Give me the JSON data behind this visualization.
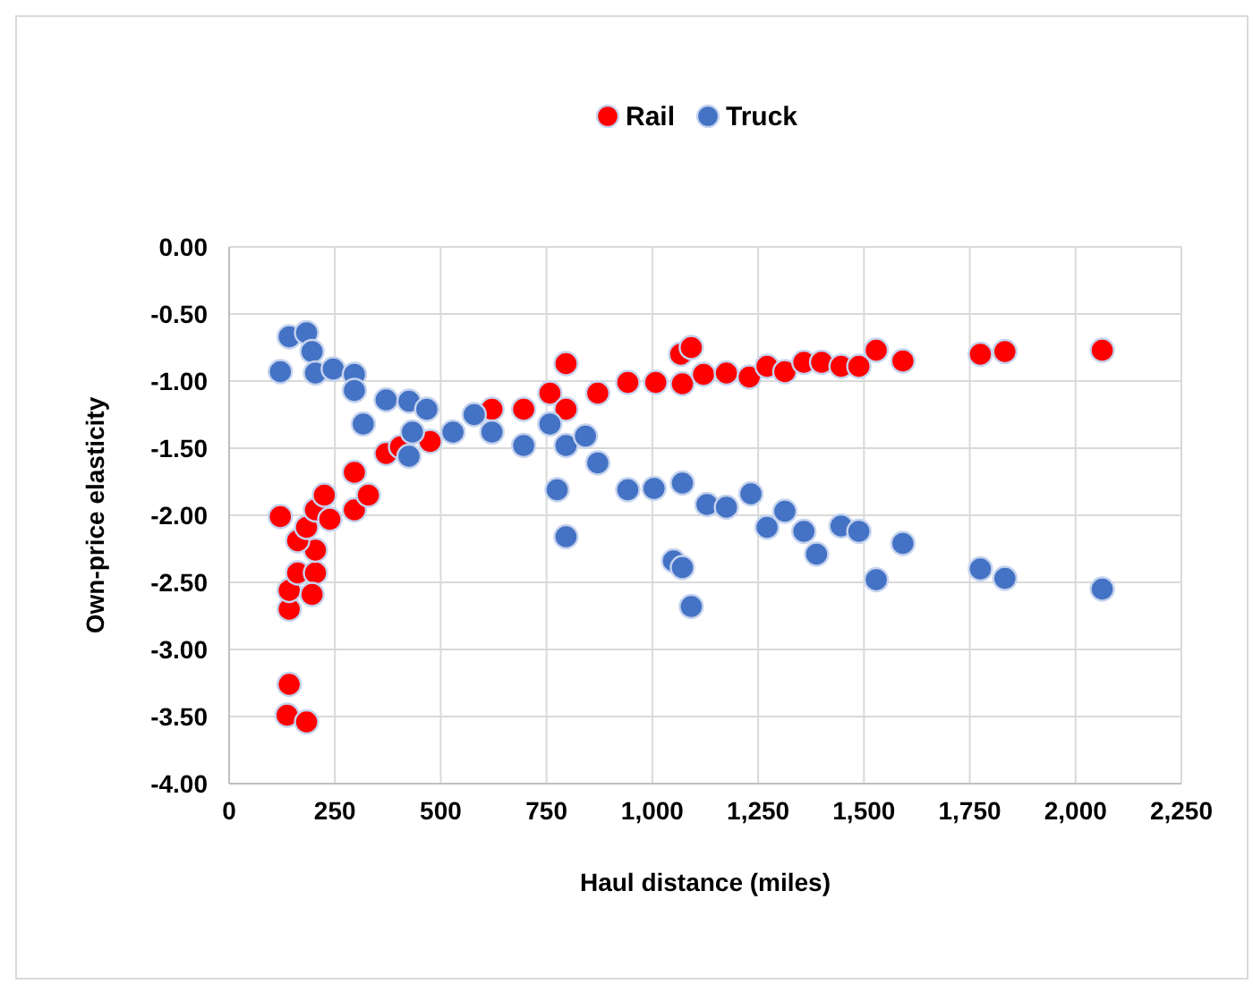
{
  "chart_data": {
    "type": "scatter",
    "xlabel": "Haul distance (miles)",
    "ylabel": "Own-price elasticity",
    "xlim": [
      0,
      2250
    ],
    "xticks": [
      0,
      250,
      500,
      750,
      {
        "value": 1000,
        "label": "1,000"
      },
      {
        "value": 1250,
        "label": "1,250"
      },
      {
        "value": 1500,
        "label": "1,500"
      },
      {
        "value": 1750,
        "label": "1,750"
      },
      {
        "value": 2000,
        "label": "2,000"
      },
      {
        "value": 2250,
        "label": "2,250"
      }
    ],
    "ylim": [
      -4,
      0
    ],
    "yticks": [
      {
        "value": -4,
        "label": "-4.00"
      },
      {
        "value": -3.5,
        "label": "-3.50"
      },
      {
        "value": -3,
        "label": "-3.00"
      },
      {
        "value": -2.5,
        "label": "-2.50"
      },
      {
        "value": -2,
        "label": "-2.00"
      },
      {
        "value": -1.5,
        "label": "-1.50"
      },
      {
        "value": -1,
        "label": "-1.00"
      },
      {
        "value": -0.5,
        "label": "-0.50"
      },
      {
        "value": 0,
        "label": "0.00"
      }
    ],
    "grid": true,
    "legend": "top",
    "marker": "circle",
    "series": [
      {
        "name": "Rail",
        "color": "#ff0000",
        "x": [
          142,
          137,
          183,
          121,
          142,
          142,
          162,
          204,
          196,
          204,
          162,
          183,
          204,
          238,
          296,
          225,
          296,
          329,
          371,
          405,
          475,
          621,
          696,
          758,
          796,
          796,
          871,
          942,
          1008,
          1067,
          1092,
          1071,
          1121,
          1175,
          1229,
          1271,
          1313,
          1358,
          1400,
          1446,
          1488,
          1529,
          1592,
          1775,
          1833,
          2063
        ],
        "values": [
          -3.26,
          -3.49,
          -3.54,
          -2.01,
          -2.7,
          -2.56,
          -2.43,
          -2.43,
          -2.59,
          -2.26,
          -2.19,
          -2.09,
          -1.96,
          -2.03,
          -1.96,
          -1.85,
          -1.68,
          -1.85,
          -1.54,
          -1.49,
          -1.45,
          -1.21,
          -1.21,
          -1.09,
          -0.87,
          -1.21,
          -1.09,
          -1.01,
          -1.01,
          -0.8,
          -0.75,
          -1.02,
          -0.95,
          -0.94,
          -0.97,
          -0.89,
          -0.93,
          -0.86,
          -0.86,
          -0.89,
          -0.89,
          -0.77,
          -0.85,
          -0.8,
          -0.78,
          -0.77
        ]
      },
      {
        "name": "Truck",
        "color": "#4472c4",
        "x": [
          121,
          142,
          183,
          196,
          204,
          246,
          296,
          296,
          317,
          371,
          425,
          467,
          433,
          425,
          529,
          579,
          621,
          696,
          758,
          796,
          775,
          796,
          842,
          871,
          942,
          1004,
          1071,
          1050,
          1071,
          1092,
          1129,
          1175,
          1233,
          1271,
          1313,
          1358,
          1388,
          1446,
          1488,
          1529,
          1592,
          1775,
          1833,
          2063
        ],
        "values": [
          -0.93,
          -0.67,
          -0.64,
          -0.78,
          -0.94,
          -0.91,
          -0.95,
          -1.07,
          -1.32,
          -1.14,
          -1.15,
          -1.21,
          -1.38,
          -1.56,
          -1.38,
          -1.25,
          -1.38,
          -1.48,
          -1.32,
          -1.48,
          -1.81,
          -2.16,
          -1.41,
          -1.61,
          -1.81,
          -1.8,
          -1.76,
          -2.34,
          -2.39,
          -2.68,
          -1.92,
          -1.94,
          -1.84,
          -2.09,
          -1.97,
          -2.12,
          -2.29,
          -2.08,
          -2.12,
          -2.48,
          -2.21,
          -2.4,
          -2.47,
          -2.55
        ]
      }
    ]
  }
}
